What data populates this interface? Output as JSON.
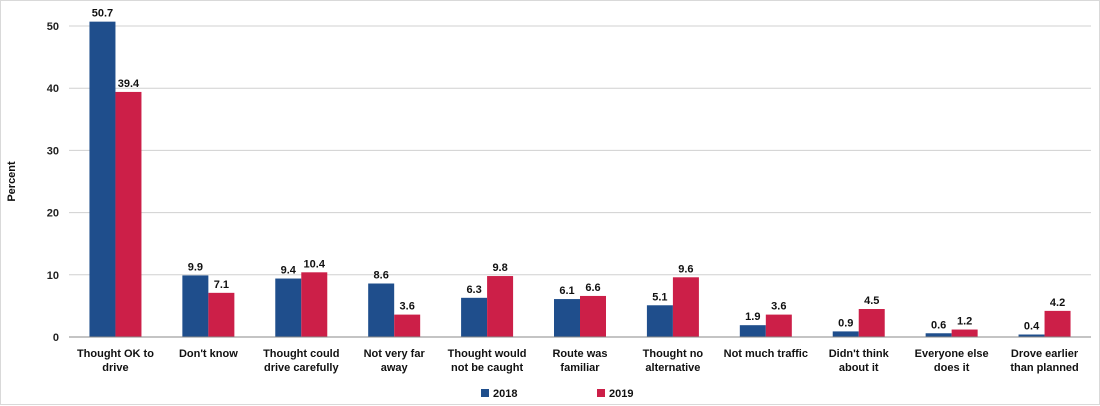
{
  "chart_data": {
    "type": "bar",
    "title": "",
    "xlabel": "",
    "ylabel": "Percent",
    "ylim": [
      0,
      50
    ],
    "yticks": [
      0,
      10,
      20,
      30,
      40,
      50
    ],
    "grid": true,
    "legend_position": "bottom",
    "categories": [
      [
        "Thought OK to",
        "drive"
      ],
      [
        "Don't know"
      ],
      [
        "Thought could",
        "drive carefully"
      ],
      [
        "Not very far",
        "away"
      ],
      [
        "Thought would",
        "not be caught"
      ],
      [
        "Route was",
        "familiar"
      ],
      [
        "Thought no",
        "alternative"
      ],
      [
        "Not much traffic"
      ],
      [
        "Didn't think",
        "about it"
      ],
      [
        "Everyone else",
        "does it"
      ],
      [
        "Drove earlier",
        "than planned"
      ]
    ],
    "series": [
      {
        "name": "2018",
        "color": "#1f4e8c",
        "values": [
          50.7,
          9.9,
          9.4,
          8.6,
          6.3,
          6.1,
          5.1,
          1.9,
          0.9,
          0.6,
          0.4
        ]
      },
      {
        "name": "2019",
        "color": "#cc1f48",
        "values": [
          39.4,
          7.1,
          10.4,
          3.6,
          9.8,
          6.6,
          9.6,
          3.6,
          4.5,
          1.2,
          4.2
        ]
      }
    ]
  }
}
